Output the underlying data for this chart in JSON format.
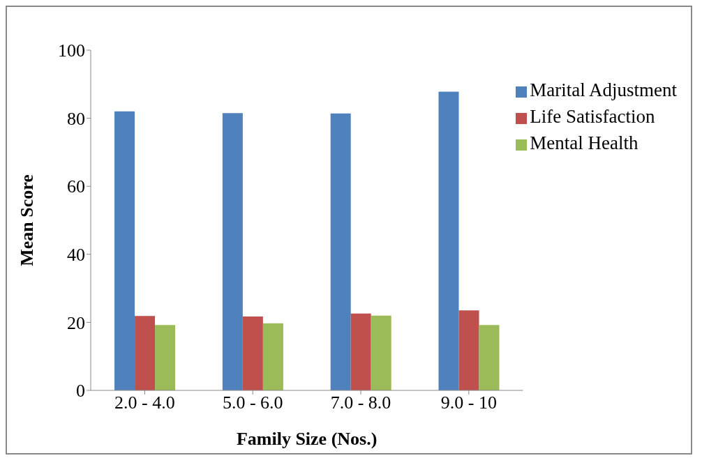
{
  "chart_data": {
    "type": "bar",
    "xlabel": "Family Size (Nos.)",
    "ylabel": "Mean Score",
    "categories": [
      "2.0 - 4.0",
      "5.0 - 6.0",
      "7.0 - 8.0",
      "9.0 - 10"
    ],
    "series": [
      {
        "name": "Marital Adjustment",
        "color": "#4f81bd",
        "values": [
          82,
          81.5,
          81.4,
          87.8
        ]
      },
      {
        "name": "Life Satisfaction",
        "color": "#c0504d",
        "values": [
          21.9,
          21.7,
          22.6,
          23.5
        ]
      },
      {
        "name": "Mental Health",
        "color": "#9bbb59",
        "values": [
          19.2,
          19.7,
          22,
          19.2
        ]
      }
    ],
    "ylim": [
      0,
      100
    ],
    "yticks": [
      0,
      20,
      40,
      60,
      80,
      100
    ],
    "legend": "top right"
  }
}
